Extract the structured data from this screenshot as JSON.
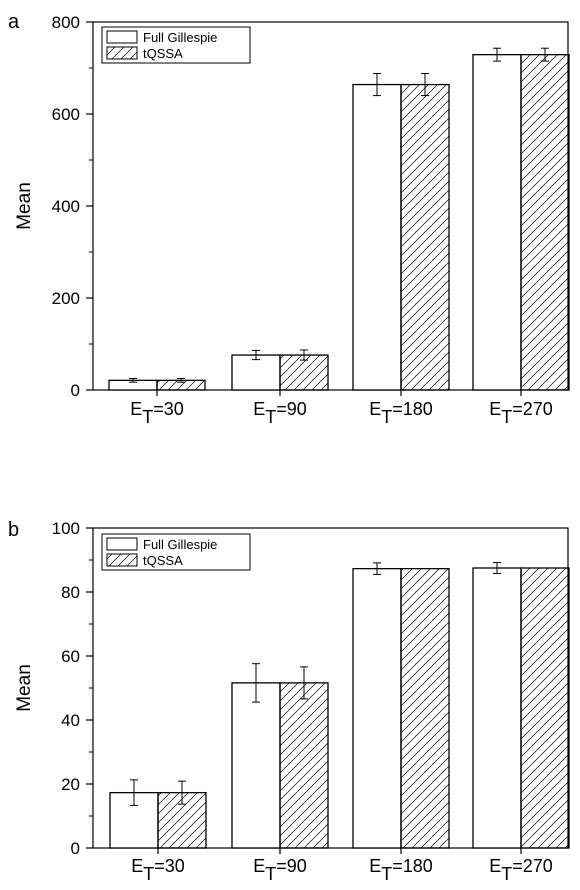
{
  "chart_data": [
    {
      "type": "bar",
      "panel_label": "a",
      "ylabel": "Mean",
      "ylim": [
        0,
        800
      ],
      "yticks": [
        0,
        200,
        400,
        600,
        800
      ],
      "categories": [
        {
          "main": "E",
          "sub": "T",
          "rest": "=30"
        },
        {
          "main": "E",
          "sub": "T",
          "rest": "=90"
        },
        {
          "main": "E",
          "sub": "T",
          "rest": "=180"
        },
        {
          "main": "E",
          "sub": "T",
          "rest": "=270"
        }
      ],
      "series": [
        {
          "name": "Full Gillespie",
          "pattern": "open",
          "values": [
            21,
            76,
            664,
            729
          ],
          "errors": [
            4,
            10,
            24,
            14
          ]
        },
        {
          "name": "tQSSA",
          "pattern": "hatched",
          "values": [
            21,
            76,
            664,
            729
          ],
          "errors": [
            4,
            11,
            24,
            14
          ]
        }
      ],
      "legend_position": "top-left",
      "grid": false
    },
    {
      "type": "bar",
      "panel_label": "b",
      "ylabel": "Mean",
      "ylim": [
        0,
        100
      ],
      "yticks": [
        0,
        20,
        40,
        60,
        80,
        100
      ],
      "categories": [
        {
          "main": "E",
          "sub": "T",
          "rest": "=30"
        },
        {
          "main": "E",
          "sub": "T",
          "rest": "=90"
        },
        {
          "main": "E",
          "sub": "T",
          "rest": "=180"
        },
        {
          "main": "E",
          "sub": "T",
          "rest": "=270"
        }
      ],
      "series": [
        {
          "name": "Full Gillespie",
          "pattern": "open",
          "values": [
            17.3,
            51.6,
            87.3,
            87.5
          ],
          "errors": [
            4.0,
            6.0,
            1.8,
            1.7
          ]
        },
        {
          "name": "tQSSA",
          "pattern": "hatched",
          "values": [
            17.3,
            51.6,
            87.3,
            87.5
          ],
          "errors": [
            3.6,
            5.0,
            0,
            0
          ]
        }
      ],
      "legend_position": "top-left",
      "grid": false
    }
  ]
}
